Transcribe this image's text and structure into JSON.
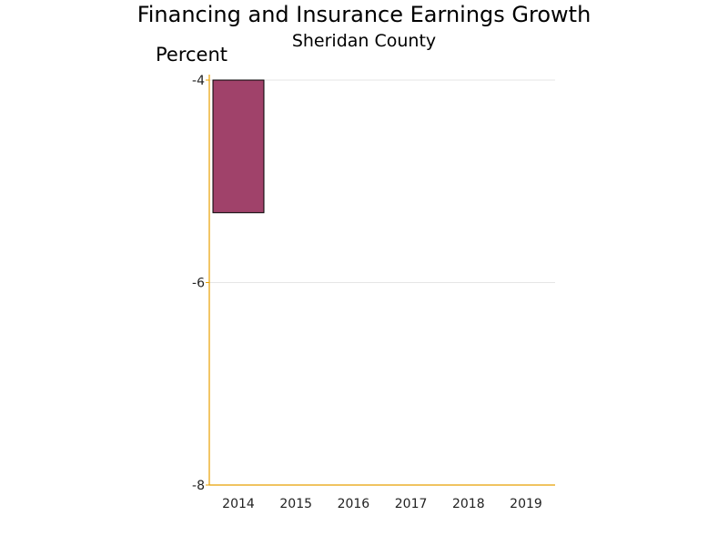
{
  "chart_data": {
    "type": "bar",
    "title": "Financing and Insurance Earnings Growth",
    "subtitle": "Sheridan County",
    "ylabel": "Percent",
    "xlabel": "",
    "categories": [
      "2014",
      "2015",
      "2016",
      "2017",
      "2018",
      "2019"
    ],
    "values": [
      -5.31,
      null,
      null,
      null,
      null,
      null
    ],
    "ylim": [
      -8,
      -4
    ],
    "yticks": [
      -4,
      -6,
      -8
    ],
    "bar_baseline": -4,
    "grid": true,
    "legend": "none",
    "colors": {
      "bar": "#a0426a",
      "bar_outline": "#000000",
      "axis": "#e8a000",
      "grid": "#e6e6e6"
    }
  }
}
